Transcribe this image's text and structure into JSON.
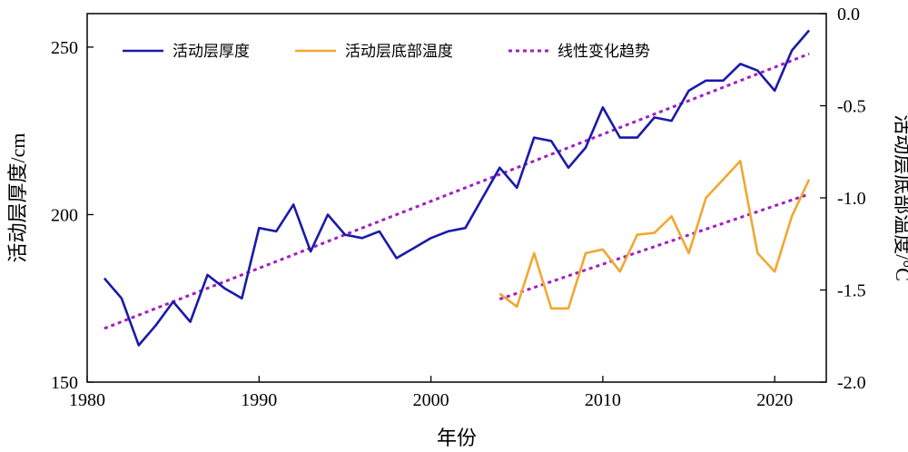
{
  "chart_data": {
    "type": "line",
    "title": "",
    "xlabel": "年份",
    "ylabel_left": "活动层厚度/cm",
    "ylabel_right": "活动层底部温度/°C",
    "xlim": [
      1980,
      2023
    ],
    "ylim_left": [
      150,
      260
    ],
    "ylim_right": [
      -2.0,
      0.0
    ],
    "x_ticks": [
      1980,
      1990,
      2000,
      2010,
      2020
    ],
    "x_tick_labels": [
      "1980",
      "1990",
      "2000",
      "2010",
      "2020"
    ],
    "y_left_ticks": [
      150,
      200,
      250
    ],
    "y_left_tick_labels": [
      "150",
      "200",
      "250"
    ],
    "y_right_ticks": [
      -2.0,
      -1.5,
      -1.0,
      -0.5,
      0.0
    ],
    "y_right_tick_labels": [
      "-2.0",
      "-1.5",
      "-1.0",
      "-0.5",
      "0.0"
    ],
    "legend_position": "top",
    "series": [
      {
        "name": "活动层厚度",
        "axis": "left",
        "color": "#1a1aa8",
        "style": "solid",
        "x": [
          1981,
          1982,
          1983,
          1984,
          1985,
          1986,
          1987,
          1988,
          1989,
          1990,
          1991,
          1992,
          1993,
          1994,
          1995,
          1996,
          1997,
          1998,
          1999,
          2000,
          2001,
          2002,
          2003,
          2004,
          2005,
          2006,
          2007,
          2008,
          2009,
          2010,
          2011,
          2012,
          2013,
          2014,
          2015,
          2016,
          2017,
          2018,
          2019,
          2020,
          2021,
          2022
        ],
        "values": [
          181,
          175,
          161,
          167,
          174,
          168,
          182,
          178,
          175,
          196,
          195,
          203,
          189,
          200,
          194,
          193,
          195,
          187,
          190,
          193,
          195,
          196,
          205,
          214,
          208,
          223,
          222,
          214,
          220,
          232,
          223,
          223,
          229,
          228,
          237,
          240,
          240,
          245,
          243,
          237,
          249,
          255
        ]
      },
      {
        "name": "活动层底部温度",
        "axis": "right",
        "color": "#f0a830",
        "style": "solid",
        "x": [
          2004,
          2005,
          2006,
          2007,
          2008,
          2009,
          2010,
          2011,
          2012,
          2013,
          2014,
          2015,
          2016,
          2017,
          2018,
          2019,
          2020,
          2021,
          2022
        ],
        "values": [
          -1.52,
          -1.59,
          -1.3,
          -1.6,
          -1.6,
          -1.3,
          -1.28,
          -1.4,
          -1.2,
          -1.19,
          -1.1,
          -1.3,
          -1.0,
          -0.9,
          -0.8,
          -1.3,
          -1.4,
          -1.1,
          -0.9
        ]
      },
      {
        "name": "线性变化趋势",
        "axis": "left",
        "color": "#a020c0",
        "style": "dotted",
        "x": [
          1981,
          2022
        ],
        "values": [
          166,
          248
        ]
      },
      {
        "name": "",
        "axis": "right",
        "color": "#a020c0",
        "style": "dotted",
        "x": [
          2004,
          2022
        ],
        "values": [
          -1.55,
          -0.98
        ]
      }
    ]
  }
}
